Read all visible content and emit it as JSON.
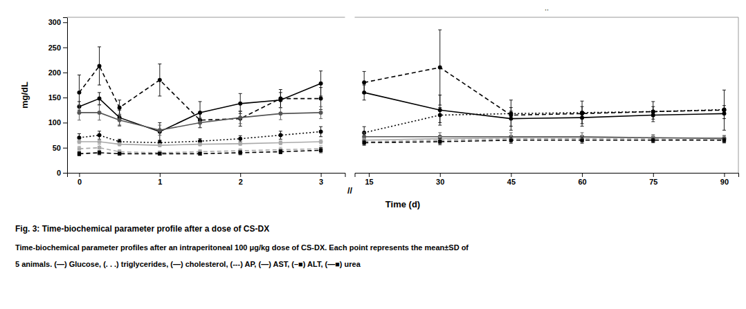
{
  "chart_data": [
    {
      "type": "line",
      "title": "Fig. 3: Time-biochemical parameter profile after a dose of CS-DX",
      "y_label": "mg/dL",
      "annotations": [
        "//",
        ".."
      ],
      "x": [
        0,
        0.25,
        0.5,
        1.0,
        1.5,
        2.0,
        2.5,
        3.0
      ],
      "xlim": [
        -0.15,
        3.3
      ],
      "xticks": [
        0,
        1,
        2,
        3
      ],
      "ylim": [
        0,
        310
      ],
      "yticks": [
        0,
        50,
        100,
        150,
        200,
        250,
        300
      ],
      "series": [
        {
          "color": "#000000",
          "line_style": "solid",
          "marker": "circle",
          "values": [
            132,
            148,
            110,
            82,
            120,
            138,
            145,
            178
          ],
          "errors": [
            10,
            12,
            15,
            18,
            22,
            20,
            15,
            25
          ]
        },
        {
          "color": "#000000",
          "line_style": "dotted",
          "marker": "circle",
          "values": [
            70,
            75,
            62,
            60,
            63,
            68,
            75,
            82
          ],
          "errors": [
            8,
            8,
            5,
            5,
            5,
            6,
            8,
            10
          ]
        },
        {
          "color": "#aaaaaa",
          "line_style": "solid",
          "marker": "circle",
          "values": [
            62,
            62,
            57,
            55,
            57,
            58,
            60,
            62
          ],
          "errors": [
            4,
            4,
            3,
            3,
            3,
            3,
            4,
            4
          ]
        },
        {
          "color": "#000000",
          "line_style": "dashed",
          "marker": "circle",
          "values": [
            160,
            213,
            130,
            185,
            105,
            108,
            148,
            148
          ],
          "errors": [
            35,
            38,
            15,
            32,
            15,
            15,
            18,
            22
          ]
        },
        {
          "color": "#555555",
          "line_style": "solid",
          "marker": "circle",
          "values": [
            120,
            120,
            105,
            85,
            100,
            110,
            118,
            120
          ],
          "errors": [
            15,
            15,
            12,
            10,
            10,
            12,
            12,
            12
          ]
        },
        {
          "color": "#aaaaaa",
          "line_style": "dashed",
          "marker": "square",
          "values": [
            48,
            50,
            42,
            40,
            42,
            44,
            46,
            48
          ],
          "errors": [
            5,
            6,
            4,
            4,
            4,
            4,
            5,
            6
          ]
        },
        {
          "color": "#000000",
          "line_style": "dashed",
          "marker": "square",
          "values": [
            38,
            40,
            38,
            38,
            38,
            40,
            42,
            45
          ],
          "errors": [
            4,
            4,
            3,
            3,
            3,
            4,
            4,
            5
          ]
        }
      ]
    },
    {
      "type": "line",
      "x_label": "Time (d)",
      "annotations": [
        "Time-biochemical parameter profiles after an intraperitoneal 100 μg/kg dose of CS-DX. Each point represents the mean±SD of",
        "5 animals. (—) Glucose, (. . .) triglycerides, (—) cholesterol, (---) AP, (—) AST, (–■) ALT, (—■) urea"
      ],
      "tick_labels": "x",
      "x": [
        14,
        30,
        45,
        60,
        75,
        90
      ],
      "xlim": [
        12,
        93
      ],
      "xticks": [
        15,
        30,
        45,
        60,
        75,
        90
      ],
      "ylim": [
        0,
        310
      ],
      "series": [
        {
          "color": "#000000",
          "line_style": "solid",
          "marker": "circle",
          "values": [
            160,
            125,
            108,
            110,
            115,
            118
          ],
          "errors": [
            15,
            30,
            15,
            12,
            8,
            10
          ]
        },
        {
          "color": "#000000",
          "line_style": "dotted",
          "marker": "circle",
          "values": [
            80,
            115,
            118,
            120,
            122,
            126
          ],
          "errors": [
            12,
            15,
            12,
            12,
            10,
            8
          ]
        },
        {
          "color": "#aaaaaa",
          "line_style": "solid",
          "marker": "circle",
          "values": [
            65,
            68,
            70,
            70,
            70,
            70
          ],
          "errors": [
            5,
            5,
            5,
            5,
            5,
            5
          ]
        },
        {
          "color": "#000000",
          "line_style": "dashed",
          "marker": "circle",
          "values": [
            180,
            210,
            115,
            118,
            122,
            125
          ],
          "errors": [
            22,
            75,
            30,
            25,
            20,
            40
          ]
        },
        {
          "color": "#555555",
          "line_style": "solid",
          "marker": "circle",
          "values": [
            72,
            72,
            72,
            72,
            70,
            68
          ],
          "errors": [
            8,
            8,
            8,
            8,
            6,
            6
          ]
        },
        {
          "color": "#aaaaaa",
          "line_style": "dashed",
          "marker": "square",
          "values": [
            62,
            65,
            68,
            68,
            68,
            65
          ],
          "errors": [
            7,
            7,
            7,
            7,
            6,
            6
          ]
        },
        {
          "color": "#000000",
          "line_style": "dashed",
          "marker": "square",
          "values": [
            60,
            62,
            65,
            65,
            65,
            65
          ],
          "errors": [
            5,
            6,
            6,
            6,
            5,
            5
          ]
        }
      ]
    }
  ]
}
